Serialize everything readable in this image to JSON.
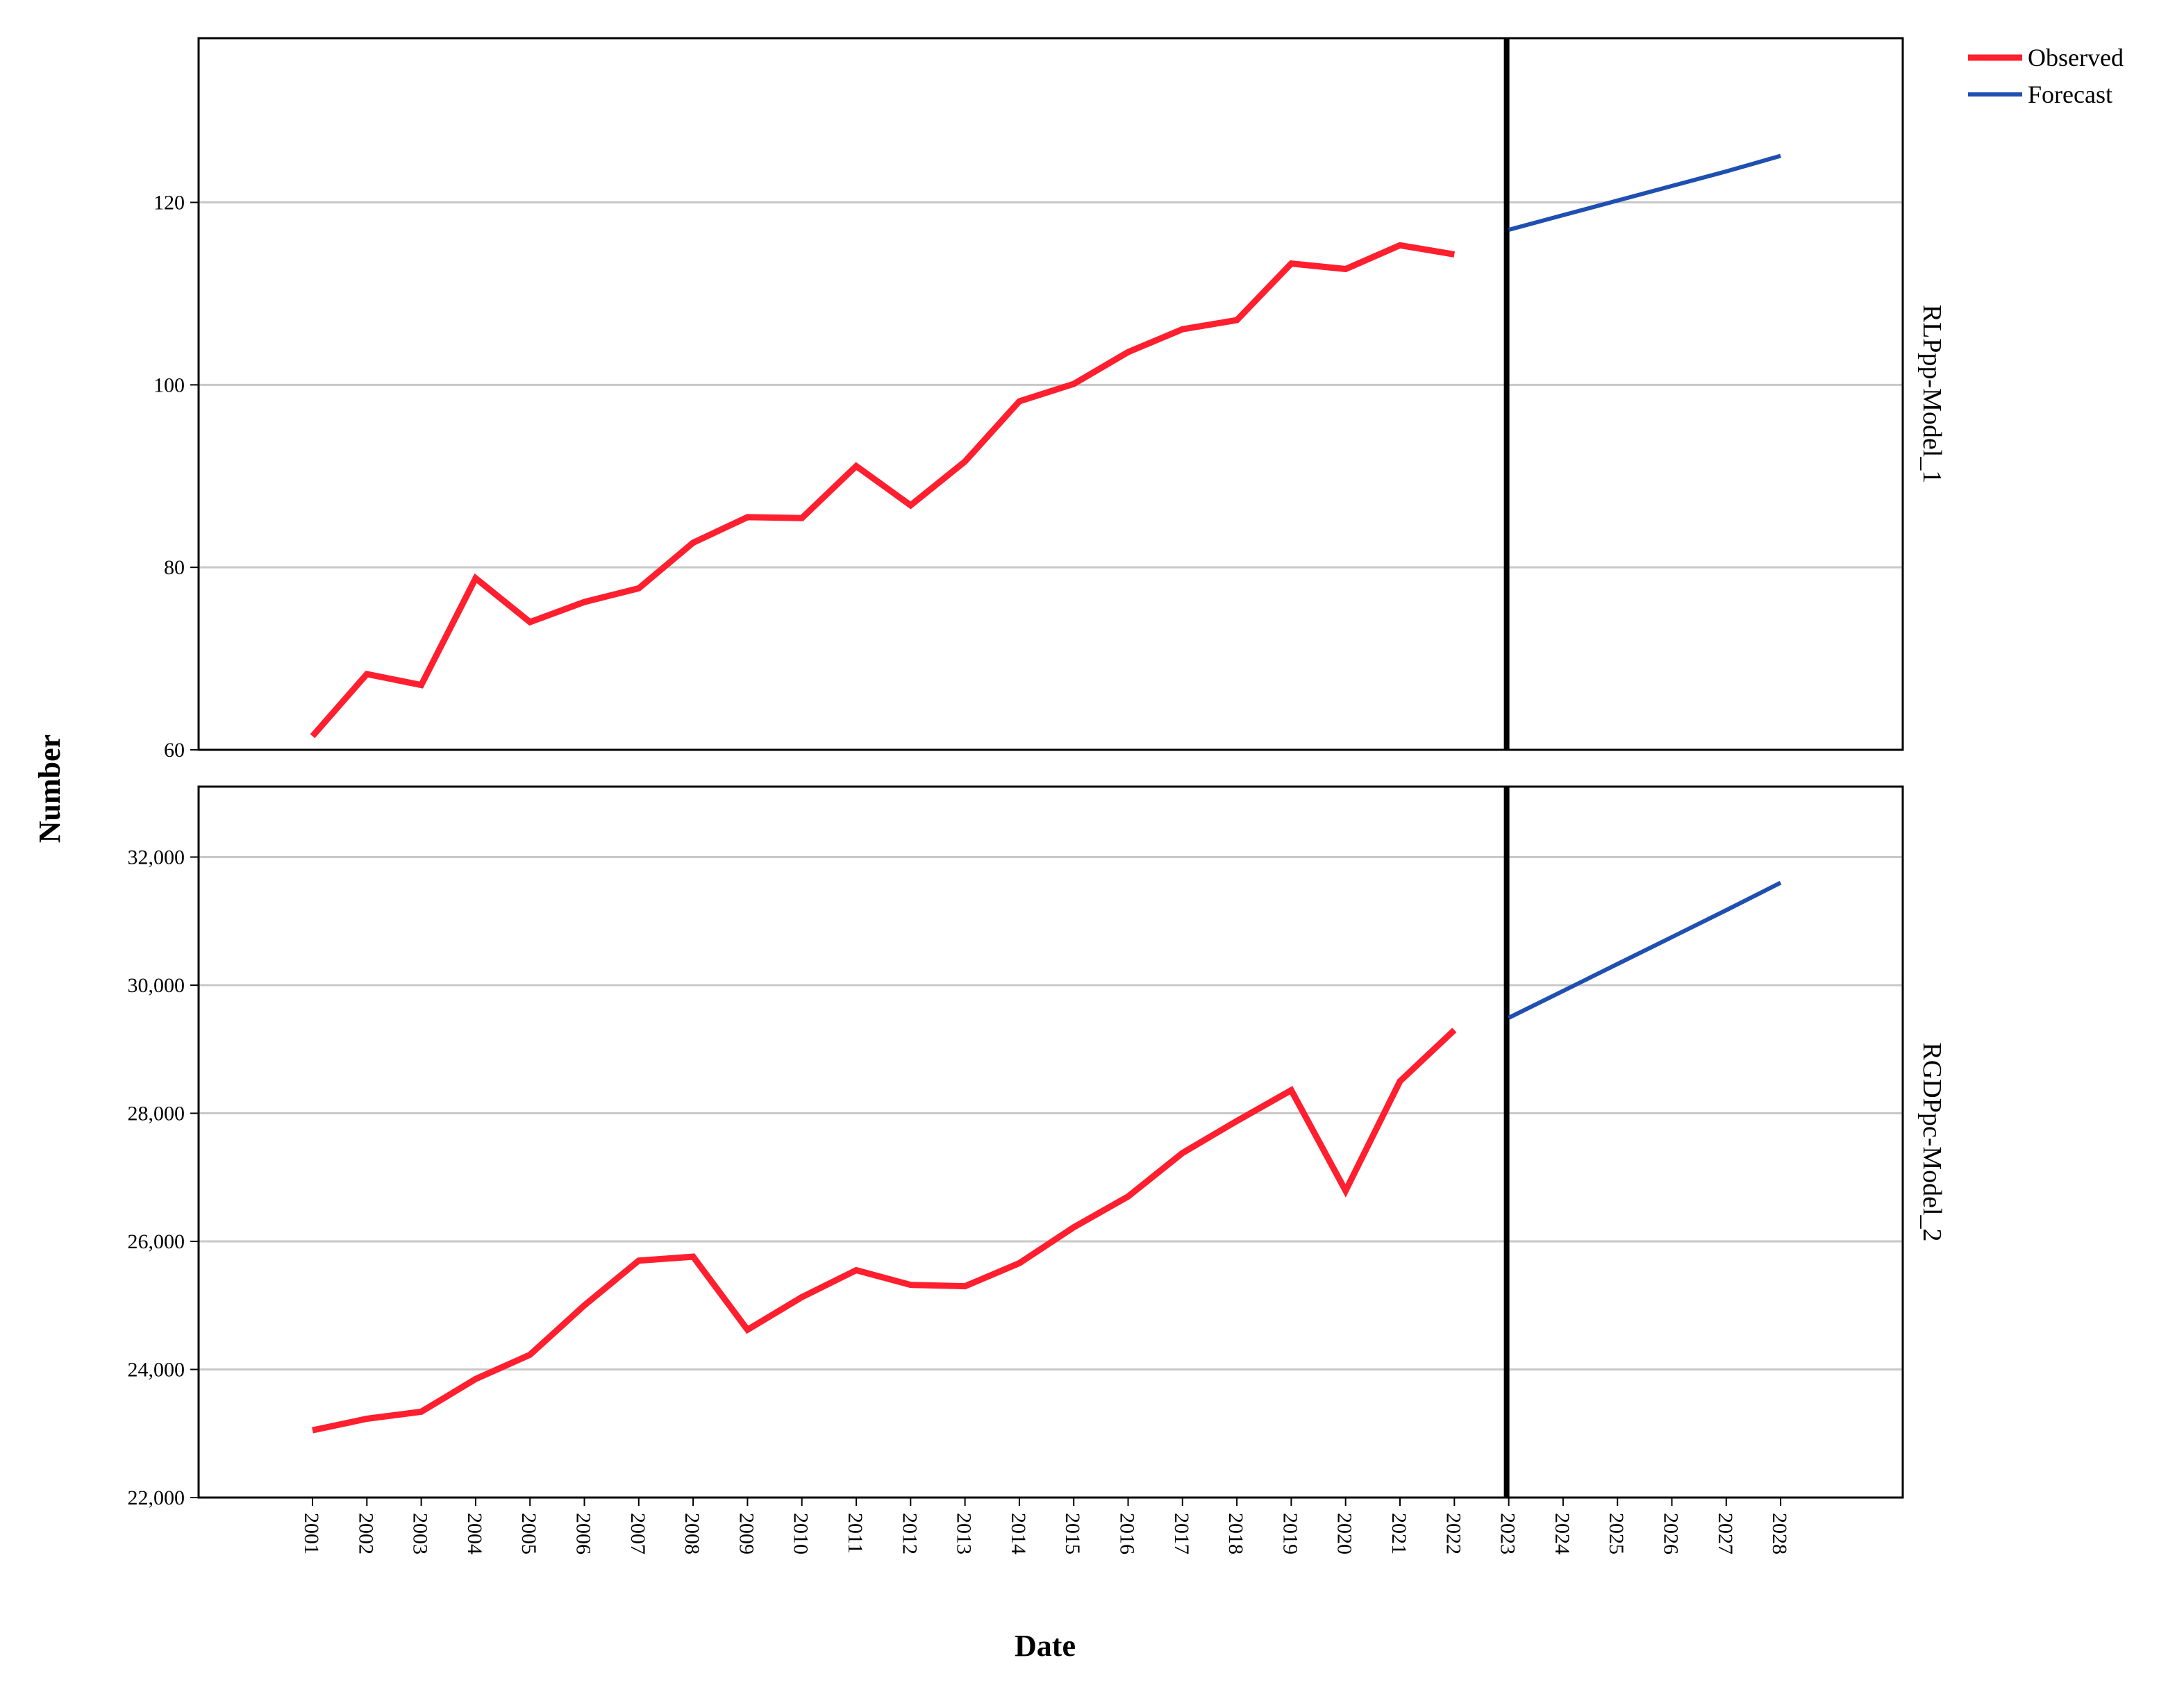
{
  "chart_data": {
    "type": "line",
    "xlabel": "Date",
    "ylabel": "Number",
    "categories": [
      "2001",
      "2002",
      "2003",
      "2004",
      "2005",
      "2006",
      "2007",
      "2008",
      "2009",
      "2010",
      "2011",
      "2012",
      "2013",
      "2014",
      "2015",
      "2016",
      "2017",
      "2018",
      "2019",
      "2020",
      "2021",
      "2022",
      "2023",
      "2024",
      "2025",
      "2026",
      "2027",
      "2028"
    ],
    "forecast_start": "2023",
    "legend": {
      "position": "top-right",
      "entries": [
        {
          "label": "Observed",
          "color": "#ff1f2e"
        },
        {
          "label": "Forecast",
          "color": "#1f4fb0"
        }
      ]
    },
    "panels": [
      {
        "label": "RLPpp-Model_1",
        "ylim": [
          60,
          138
        ],
        "yticks": [
          60,
          80,
          100,
          120
        ],
        "ytick_labels": [
          "60",
          "80",
          "100",
          "120"
        ],
        "grid": true,
        "series": [
          {
            "name": "Observed",
            "color": "#ff1f2e",
            "x": [
              "2001",
              "2002",
              "2003",
              "2004",
              "2005",
              "2006",
              "2007",
              "2008",
              "2009",
              "2010",
              "2011",
              "2012",
              "2013",
              "2014",
              "2015",
              "2016",
              "2017",
              "2018",
              "2019",
              "2020",
              "2021",
              "2022"
            ],
            "values": [
              61.5,
              68.3,
              67.1,
              78.8,
              74.0,
              76.2,
              77.7,
              82.7,
              85.5,
              85.4,
              91.1,
              86.8,
              91.6,
              98.2,
              100.1,
              103.6,
              106.1,
              107.1,
              113.3,
              112.7,
              115.3,
              114.3
            ]
          },
          {
            "name": "Forecast",
            "color": "#1f4fb0",
            "x": [
              "2023",
              "2024",
              "2025",
              "2026",
              "2027",
              "2028"
            ],
            "values": [
              117.0,
              118.6,
              120.2,
              121.8,
              123.4,
              125.1
            ]
          }
        ]
      },
      {
        "label": "RGDPpc-Model_2",
        "ylim": [
          22000,
          33100
        ],
        "yticks": [
          22000,
          24000,
          26000,
          28000,
          30000,
          32000
        ],
        "ytick_labels": [
          "22,000",
          "24,000",
          "26,000",
          "28,000",
          "30,000",
          "32,000"
        ],
        "grid": true,
        "series": [
          {
            "name": "Observed",
            "color": "#ff1f2e",
            "x": [
              "2001",
              "2002",
              "2003",
              "2004",
              "2005",
              "2006",
              "2007",
              "2008",
              "2009",
              "2010",
              "2011",
              "2012",
              "2013",
              "2014",
              "2015",
              "2016",
              "2017",
              "2018",
              "2019",
              "2020",
              "2021",
              "2022"
            ],
            "values": [
              23050,
              23230,
              23340,
              23850,
              24230,
              25000,
              25700,
              25760,
              24620,
              25130,
              25550,
              25320,
              25300,
              25660,
              26220,
              26700,
              27380,
              27880,
              28360,
              26790,
              28500,
              29300
            ]
          },
          {
            "name": "Forecast",
            "color": "#1f4fb0",
            "x": [
              "2023",
              "2024",
              "2025",
              "2026",
              "2027",
              "2028"
            ],
            "values": [
              29490,
              29910,
              30330,
              30750,
              31170,
              31600
            ]
          }
        ]
      }
    ]
  }
}
